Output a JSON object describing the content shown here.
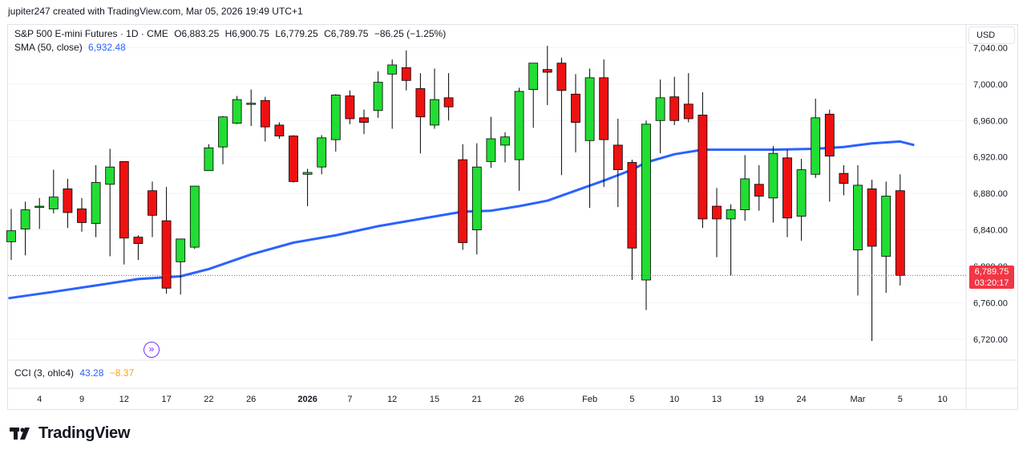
{
  "header": {
    "text": "jupiter247 created with TradingView.com, Mar 05, 2026 19:49 UTC+1"
  },
  "legend": {
    "symbol": "S&P 500 E-mini Futures · 1D · CME",
    "o_label": "O",
    "o": "6,883.25",
    "h_label": "H",
    "h": "6,900.75",
    "l_label": "L",
    "l": "6,779.25",
    "c_label": "C",
    "c": "6,789.75",
    "change": "−86.25 (−1.25%)",
    "sma_label": "SMA (50, close)",
    "sma_value": "6,932.48",
    "cci_label": "CCI (3, ohlc4)",
    "cci_value": "43.28",
    "cci_signal": "−8.37"
  },
  "currency": "USD",
  "price_tag": {
    "price": "6,789.75",
    "countdown": "03:20:17"
  },
  "brand": {
    "name": "TradingView"
  },
  "colors": {
    "up": "#22dd33",
    "down": "#ee1111",
    "sma": "#2962ff",
    "tag": "#f23645"
  },
  "chart_data": {
    "type": "candlestick",
    "y_axis": {
      "ylim": [
        6697,
        7065
      ],
      "ticks": [
        6720,
        6760,
        6800,
        6840,
        6880,
        6920,
        6960,
        7000,
        7040
      ],
      "tick_labels": [
        "6,720.00",
        "6,760.00",
        "6,800.00",
        "6,840.00",
        "6,880.00",
        "6,920.00",
        "6,960.00",
        "7,000.00",
        "7,040.00"
      ]
    },
    "x_axis": {
      "labels": [
        {
          "i": 2,
          "text": "4"
        },
        {
          "i": 5,
          "text": "9"
        },
        {
          "i": 8,
          "text": "12"
        },
        {
          "i": 11,
          "text": "17"
        },
        {
          "i": 14,
          "text": "22"
        },
        {
          "i": 17,
          "text": "26"
        },
        {
          "i": 21,
          "text": "2026",
          "bold": true
        },
        {
          "i": 24,
          "text": "7"
        },
        {
          "i": 27,
          "text": "12"
        },
        {
          "i": 30,
          "text": "15"
        },
        {
          "i": 33,
          "text": "21"
        },
        {
          "i": 36,
          "text": "26"
        },
        {
          "i": 41,
          "text": "Feb"
        },
        {
          "i": 44,
          "text": "5"
        },
        {
          "i": 47,
          "text": "10"
        },
        {
          "i": 50,
          "text": "13"
        },
        {
          "i": 53,
          "text": "19"
        },
        {
          "i": 56,
          "text": "24"
        },
        {
          "i": 60,
          "text": "Mar"
        },
        {
          "i": 63,
          "text": "5"
        },
        {
          "i": 66,
          "text": "10"
        }
      ]
    },
    "candles": [
      {
        "o": 6827,
        "h": 6863,
        "l": 6807,
        "c": 6839
      },
      {
        "o": 6841,
        "h": 6871,
        "l": 6812,
        "c": 6862
      },
      {
        "o": 6866,
        "h": 6875,
        "l": 6841,
        "c": 6866
      },
      {
        "o": 6863,
        "h": 6906,
        "l": 6858,
        "c": 6876
      },
      {
        "o": 6885,
        "h": 6896,
        "l": 6842,
        "c": 6859
      },
      {
        "o": 6863,
        "h": 6875,
        "l": 6838,
        "c": 6848
      },
      {
        "o": 6847,
        "h": 6911,
        "l": 6832,
        "c": 6892
      },
      {
        "o": 6890,
        "h": 6929,
        "l": 6811,
        "c": 6909
      },
      {
        "o": 6915,
        "h": 6915,
        "l": 6802,
        "c": 6831
      },
      {
        "o": 6832,
        "h": 6834,
        "l": 6807,
        "c": 6825
      },
      {
        "o": 6883,
        "h": 6893,
        "l": 6832,
        "c": 6856
      },
      {
        "o": 6850,
        "h": 6887,
        "l": 6770,
        "c": 6776
      },
      {
        "o": 6805,
        "h": 6829,
        "l": 6769,
        "c": 6830
      },
      {
        "o": 6821,
        "h": 6887,
        "l": 6819,
        "c": 6888
      },
      {
        "o": 6905,
        "h": 6934,
        "l": 6905,
        "c": 6930
      },
      {
        "o": 6931,
        "h": 6965,
        "l": 6912,
        "c": 6964
      },
      {
        "o": 6957,
        "h": 6987,
        "l": 6956,
        "c": 6983
      },
      {
        "o": 6979,
        "h": 6994,
        "l": 6954,
        "c": 6979
      },
      {
        "o": 6982,
        "h": 6986,
        "l": 6937,
        "c": 6953
      },
      {
        "o": 6955,
        "h": 6958,
        "l": 6940,
        "c": 6943
      },
      {
        "o": 6943,
        "h": 6944,
        "l": 6892,
        "c": 6893
      },
      {
        "o": 6901,
        "h": 6907,
        "l": 6866,
        "c": 6903
      },
      {
        "o": 6909,
        "h": 6944,
        "l": 6901,
        "c": 6941
      },
      {
        "o": 6939,
        "h": 6989,
        "l": 6926,
        "c": 6988
      },
      {
        "o": 6987,
        "h": 6993,
        "l": 6956,
        "c": 6962
      },
      {
        "o": 6963,
        "h": 6972,
        "l": 6945,
        "c": 6958
      },
      {
        "o": 6971,
        "h": 7014,
        "l": 6963,
        "c": 7002
      },
      {
        "o": 7011,
        "h": 7027,
        "l": 6951,
        "c": 7021
      },
      {
        "o": 7018,
        "h": 7037,
        "l": 6993,
        "c": 7004
      },
      {
        "o": 6995,
        "h": 7012,
        "l": 6924,
        "c": 6964
      },
      {
        "o": 6955,
        "h": 7017,
        "l": 6951,
        "c": 6983
      },
      {
        "o": 6985,
        "h": 7012,
        "l": 6960,
        "c": 6975
      },
      {
        "o": 6917,
        "h": 6934,
        "l": 6818,
        "c": 6826
      },
      {
        "o": 6840,
        "h": 6935,
        "l": 6813,
        "c": 6909
      },
      {
        "o": 6915,
        "h": 6964,
        "l": 6908,
        "c": 6940
      },
      {
        "o": 6933,
        "h": 6947,
        "l": 6914,
        "c": 6942
      },
      {
        "o": 6917,
        "h": 6996,
        "l": 6883,
        "c": 6992
      },
      {
        "o": 6994,
        "h": 7023,
        "l": 6952,
        "c": 7023
      },
      {
        "o": 7016,
        "h": 7042,
        "l": 6977,
        "c": 7013
      },
      {
        "o": 7023,
        "h": 7029,
        "l": 6900,
        "c": 6993
      },
      {
        "o": 6989,
        "h": 7011,
        "l": 6925,
        "c": 6958
      },
      {
        "o": 6938,
        "h": 7017,
        "l": 6864,
        "c": 7007
      },
      {
        "o": 7007,
        "h": 7027,
        "l": 6887,
        "c": 6939
      },
      {
        "o": 6933,
        "h": 6962,
        "l": 6865,
        "c": 6906
      },
      {
        "o": 6914,
        "h": 6917,
        "l": 6785,
        "c": 6820
      },
      {
        "o": 6785,
        "h": 6960,
        "l": 6752,
        "c": 6956
      },
      {
        "o": 6960,
        "h": 7005,
        "l": 6924,
        "c": 6985
      },
      {
        "o": 6986,
        "h": 7008,
        "l": 6955,
        "c": 6960
      },
      {
        "o": 6978,
        "h": 7012,
        "l": 6958,
        "c": 6962
      },
      {
        "o": 6966,
        "h": 6991,
        "l": 6842,
        "c": 6852
      },
      {
        "o": 6866,
        "h": 6886,
        "l": 6810,
        "c": 6852
      },
      {
        "o": 6852,
        "h": 6868,
        "l": 6790,
        "c": 6862
      },
      {
        "o": 6862,
        "h": 6922,
        "l": 6850,
        "c": 6896
      },
      {
        "o": 6890,
        "h": 6911,
        "l": 6861,
        "c": 6877
      },
      {
        "o": 6875,
        "h": 6932,
        "l": 6848,
        "c": 6924
      },
      {
        "o": 6919,
        "h": 6928,
        "l": 6832,
        "c": 6853
      },
      {
        "o": 6855,
        "h": 6918,
        "l": 6828,
        "c": 6906
      },
      {
        "o": 6901,
        "h": 6984,
        "l": 6897,
        "c": 6963
      },
      {
        "o": 6967,
        "h": 6972,
        "l": 6871,
        "c": 6921
      },
      {
        "o": 6902,
        "h": 6911,
        "l": 6878,
        "c": 6891
      },
      {
        "o": 6818,
        "h": 6911,
        "l": 6768,
        "c": 6889
      },
      {
        "o": 6885,
        "h": 6895,
        "l": 6718,
        "c": 6822
      },
      {
        "o": 6811,
        "h": 6893,
        "l": 6771,
        "c": 6877
      },
      {
        "o": 6883,
        "h": 6901,
        "l": 6779,
        "c": 6790
      }
    ],
    "sma_50": {
      "name": "SMA (50, close)",
      "points": [
        {
          "i": -0.2,
          "v": 6765
        },
        {
          "i": 3,
          "v": 6772
        },
        {
          "i": 6,
          "v": 6779
        },
        {
          "i": 9,
          "v": 6786
        },
        {
          "i": 12,
          "v": 6789
        },
        {
          "i": 14,
          "v": 6797
        },
        {
          "i": 17,
          "v": 6813
        },
        {
          "i": 20,
          "v": 6826
        },
        {
          "i": 23,
          "v": 6834
        },
        {
          "i": 26,
          "v": 6844
        },
        {
          "i": 29,
          "v": 6852
        },
        {
          "i": 32,
          "v": 6860
        },
        {
          "i": 34,
          "v": 6861
        },
        {
          "i": 36,
          "v": 6866
        },
        {
          "i": 38,
          "v": 6872
        },
        {
          "i": 40,
          "v": 6883
        },
        {
          "i": 42,
          "v": 6894
        },
        {
          "i": 44,
          "v": 6906
        },
        {
          "i": 45,
          "v": 6914
        },
        {
          "i": 47,
          "v": 6923
        },
        {
          "i": 49,
          "v": 6928
        },
        {
          "i": 51,
          "v": 6928
        },
        {
          "i": 54,
          "v": 6928
        },
        {
          "i": 57,
          "v": 6929
        },
        {
          "i": 59,
          "v": 6931
        },
        {
          "i": 61,
          "v": 6935
        },
        {
          "i": 63,
          "v": 6937
        },
        {
          "i": 64,
          "v": 6933
        }
      ]
    }
  }
}
